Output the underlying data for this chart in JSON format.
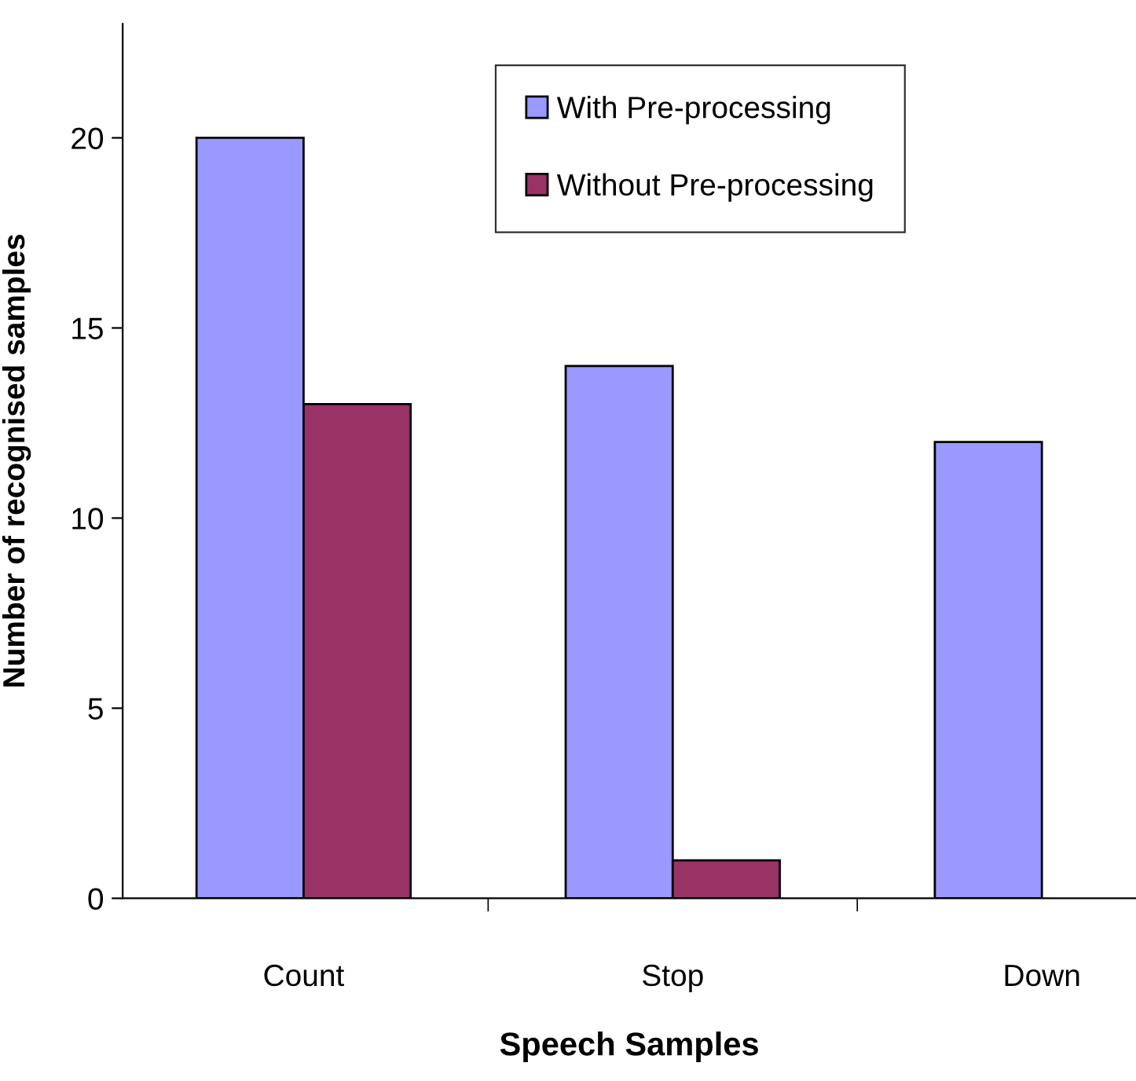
{
  "chart_data": {
    "type": "bar",
    "xlabel": "Speech Samples",
    "ylabel": "Number of recognised samples",
    "categories": [
      "Count",
      "Stop",
      "Down"
    ],
    "series": [
      {
        "name": "With Pre-processing",
        "color": "#9999ff",
        "values": [
          20,
          14,
          12
        ]
      },
      {
        "name": "Without Pre-processing",
        "color": "#993366",
        "values": [
          13,
          1,
          null
        ]
      }
    ],
    "ylim": [
      0,
      23
    ],
    "yticks": [
      0,
      5,
      10,
      15,
      20
    ],
    "grid": false,
    "legend": "top"
  }
}
